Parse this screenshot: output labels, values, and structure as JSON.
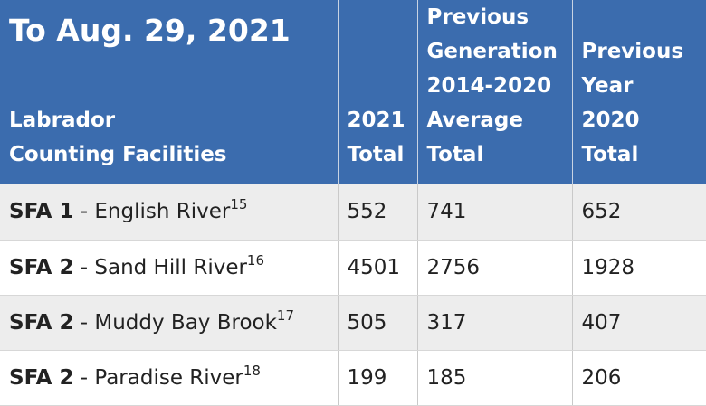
{
  "table": {
    "title": "To Aug. 29, 2021",
    "headers": [
      [
        "Labrador",
        "Counting Facilities"
      ],
      [
        "2021",
        "Total"
      ],
      [
        "Previous",
        "Generation",
        "2014-2020",
        "Average",
        "Total"
      ],
      [
        "Previous",
        "Year",
        "2020",
        "Total"
      ]
    ],
    "rows": [
      {
        "sfa": "SFA 1",
        "sep": " - ",
        "river": "English River",
        "note": "15",
        "total_2021": "552",
        "avg_2014_2020": "741",
        "total_2020": "652"
      },
      {
        "sfa": "SFA 2",
        "sep": " - ",
        "river": "Sand Hill River",
        "note": "16",
        "total_2021": "4501",
        "avg_2014_2020": "2756",
        "total_2020": "1928"
      },
      {
        "sfa": "SFA 2",
        "sep": " - ",
        "river": "Muddy Bay Brook",
        "note": "17",
        "total_2021": "505",
        "avg_2014_2020": "317",
        "total_2020": "407"
      },
      {
        "sfa": "SFA 2",
        "sep": " - ",
        "river": "Paradise River",
        "note": "18",
        "total_2021": "199",
        "avg_2014_2020": "185",
        "total_2020": "206"
      }
    ]
  },
  "colors": {
    "header_bg": "#3b6cae",
    "row_alt": "#ededed"
  }
}
